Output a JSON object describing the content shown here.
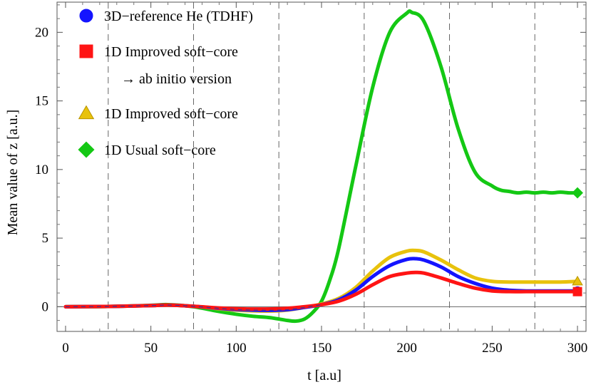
{
  "chart_data": {
    "type": "line",
    "title": "",
    "xlabel": "t  [a.u]",
    "ylabel": "Mean value  of  z    [a.u.]",
    "xlim": [
      -5,
      305
    ],
    "ylim": [
      -1.8,
      22.2
    ],
    "x_ticks": [
      0,
      50,
      100,
      150,
      200,
      250,
      300
    ],
    "y_ticks": [
      0,
      5,
      10,
      15,
      20
    ],
    "vertical_dashed_lines": [
      25,
      75,
      125,
      175,
      225,
      275
    ],
    "legend_position": "top-left",
    "series": [
      {
        "name": "3D−reference He (TDHF)",
        "color": "#1414ff",
        "marker": "circle",
        "x": [
          0,
          25,
          50,
          60,
          75,
          100,
          125,
          140,
          150,
          160,
          170,
          180,
          190,
          200,
          205,
          210,
          220,
          230,
          240,
          250,
          260,
          270,
          280,
          290,
          300
        ],
        "y": [
          0,
          0.02,
          0.08,
          0.12,
          0.03,
          -0.2,
          -0.25,
          -0.05,
          0.15,
          0.5,
          1.2,
          2.2,
          3.0,
          3.45,
          3.5,
          3.4,
          2.9,
          2.2,
          1.7,
          1.35,
          1.2,
          1.15,
          1.15,
          1.15,
          1.15
        ]
      },
      {
        "name": "1D Improved soft−core\n→ ab initio version",
        "color": "#ff1414",
        "marker": "square",
        "x": [
          0,
          25,
          50,
          60,
          75,
          100,
          125,
          140,
          150,
          160,
          170,
          180,
          190,
          200,
          205,
          210,
          220,
          230,
          240,
          250,
          260,
          270,
          280,
          290,
          300
        ],
        "y": [
          0,
          0.02,
          0.08,
          0.12,
          0.03,
          -0.15,
          -0.15,
          0.0,
          0.15,
          0.4,
          0.9,
          1.6,
          2.2,
          2.45,
          2.5,
          2.45,
          2.1,
          1.7,
          1.35,
          1.15,
          1.1,
          1.1,
          1.1,
          1.1,
          1.1
        ]
      },
      {
        "name": "1D Improved soft−core",
        "color": "#e8c20c",
        "marker": "triangle",
        "x": [
          0,
          25,
          50,
          60,
          75,
          100,
          125,
          140,
          150,
          160,
          170,
          180,
          190,
          200,
          205,
          210,
          220,
          230,
          240,
          250,
          260,
          270,
          280,
          290,
          300
        ],
        "y": [
          0,
          0.02,
          0.08,
          0.12,
          0.03,
          -0.25,
          -0.3,
          -0.05,
          0.2,
          0.6,
          1.4,
          2.6,
          3.6,
          4.05,
          4.1,
          4.0,
          3.4,
          2.7,
          2.1,
          1.85,
          1.8,
          1.8,
          1.8,
          1.8,
          1.85
        ]
      },
      {
        "name": "1D Usual soft−core",
        "color": "#14c814",
        "marker": "diamond",
        "x": [
          0,
          25,
          50,
          60,
          75,
          90,
          100,
          110,
          120,
          130,
          135,
          140,
          145,
          150,
          155,
          160,
          170,
          180,
          190,
          200,
          203,
          210,
          220,
          230,
          240,
          250,
          255,
          260,
          265,
          270,
          275,
          280,
          285,
          290,
          295,
          300
        ],
        "y": [
          0,
          0.02,
          0.1,
          0.15,
          0.0,
          -0.35,
          -0.55,
          -0.7,
          -0.8,
          -1.0,
          -1.05,
          -0.9,
          -0.4,
          0.4,
          2.0,
          4.2,
          10.2,
          16.0,
          20.0,
          21.4,
          21.45,
          20.8,
          17.5,
          13.0,
          9.8,
          8.8,
          8.5,
          8.4,
          8.3,
          8.35,
          8.3,
          8.35,
          8.3,
          8.35,
          8.3,
          8.3
        ]
      }
    ]
  }
}
